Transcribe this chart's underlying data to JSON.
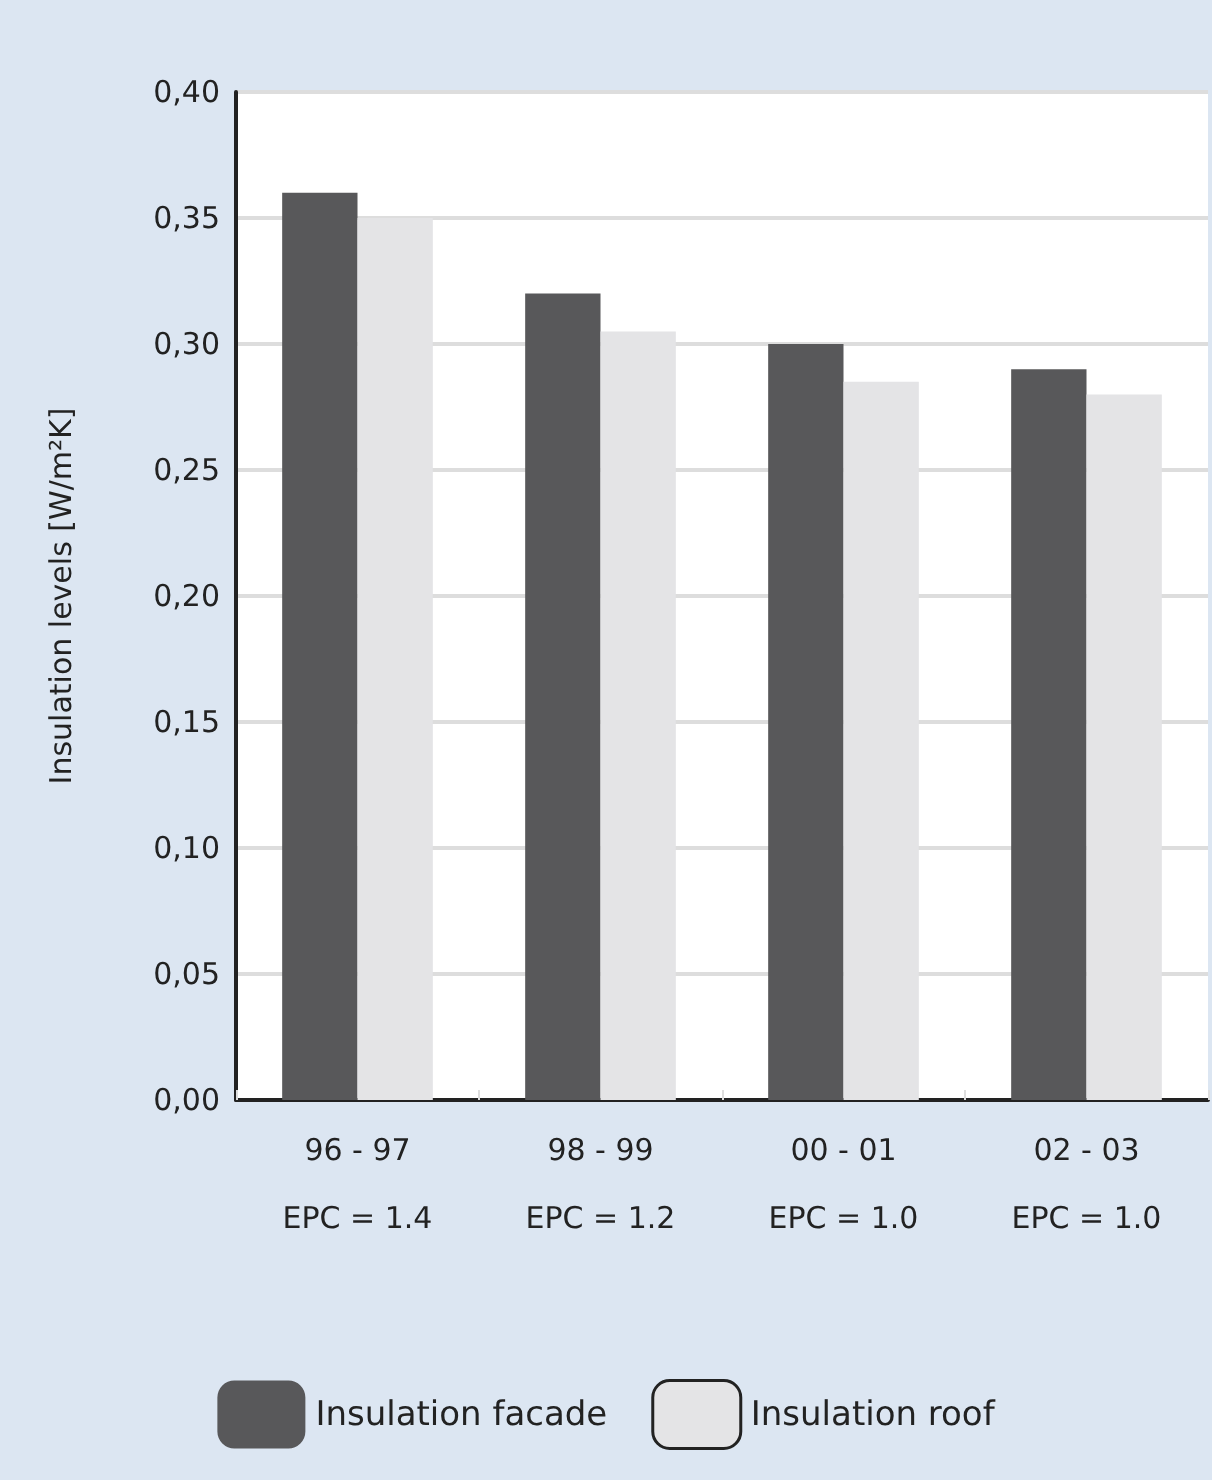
{
  "chart_data": {
    "type": "bar",
    "ylabel": "Insulation levels [W/m²K]",
    "categories": [
      "96 - 97\nEPC = 1.4",
      "98 - 99\nEPC = 1.2",
      "00 - 01\nEPC = 1.0",
      "02 - 03\nEPC = 1.0"
    ],
    "series": [
      {
        "name": "Insulation facade",
        "color": "#58585a",
        "values": [
          0.36,
          0.32,
          0.3,
          0.29
        ]
      },
      {
        "name": "Insulation roof",
        "color": "#e4e4e6",
        "values": [
          0.35,
          0.305,
          0.285,
          0.28
        ]
      }
    ],
    "ylim": [
      0,
      0.4
    ],
    "yticks": [
      {
        "value": 0,
        "label": "0,00"
      },
      {
        "value": 0.05,
        "label": "0,05"
      },
      {
        "value": 0.1,
        "label": "0,10"
      },
      {
        "value": 0.15,
        "label": "0,15"
      },
      {
        "value": 0.2,
        "label": "0,20"
      },
      {
        "value": 0.25,
        "label": "0,25"
      },
      {
        "value": 0.3,
        "label": "0,30"
      },
      {
        "value": 0.35,
        "label": "0,35"
      },
      {
        "value": 0.4,
        "label": "0,40"
      }
    ],
    "grid": "y",
    "legend": "bottom"
  }
}
